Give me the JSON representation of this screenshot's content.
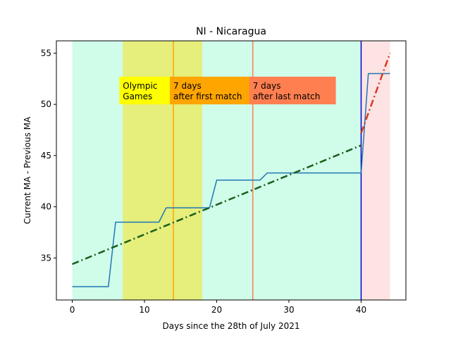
{
  "chart_data": {
    "type": "line",
    "title": "NI - Nicaragua",
    "xlabel": "Days since the 28th of July 2021",
    "ylabel": "Current MA - Previous MA",
    "xlim": [
      -2.2,
      46.2
    ],
    "ylim": [
      30.9,
      56.2
    ],
    "xticks": [
      0,
      10,
      20,
      30,
      40
    ],
    "yticks": [
      35,
      40,
      45,
      50,
      55
    ],
    "grid": false,
    "shaded_regions": [
      {
        "x0": 0,
        "x1": 40,
        "color": "#d0fcea"
      },
      {
        "x0": 7,
        "x1": 18,
        "color": "#e6ee7c"
      },
      {
        "x0": 40,
        "x1": 44,
        "color": "#fde3e3"
      }
    ],
    "vertical_lines": [
      {
        "x": 14,
        "color": "#ffa500"
      },
      {
        "x": 25,
        "color": "#ff7f50"
      },
      {
        "x": 40,
        "color": "#0000cc"
      }
    ],
    "annotations": [
      {
        "lines": [
          "Olympic",
          "Games"
        ],
        "x": 7,
        "y": 51.5,
        "bg": "#ffff00"
      },
      {
        "lines": [
          "7 days",
          "after first match"
        ],
        "x": 14,
        "y": 51.5,
        "bg": "#ffa500"
      },
      {
        "lines": [
          "7 days",
          "after last match"
        ],
        "x": 25,
        "y": 51.5,
        "bg": "#ff7f50"
      }
    ],
    "series": [
      {
        "style": "solid",
        "color": "#1f77b4",
        "x": [
          0,
          1,
          2,
          3,
          4,
          5,
          6,
          7,
          8,
          9,
          10,
          11,
          12,
          13,
          14,
          15,
          16,
          17,
          18,
          19,
          20,
          21,
          22,
          23,
          24,
          25,
          26,
          27,
          28,
          29,
          30,
          31,
          32,
          33,
          34,
          35,
          36,
          37,
          38,
          39,
          40,
          41,
          42,
          43,
          44
        ],
        "y": [
          32.2,
          32.2,
          32.2,
          32.2,
          32.2,
          32.2,
          38.5,
          38.5,
          38.5,
          38.5,
          38.5,
          38.5,
          38.5,
          39.9,
          39.9,
          39.9,
          39.9,
          39.9,
          39.9,
          39.9,
          42.6,
          42.6,
          42.6,
          42.6,
          42.6,
          42.6,
          42.6,
          43.3,
          43.3,
          43.3,
          43.3,
          43.3,
          43.3,
          43.3,
          43.3,
          43.3,
          43.3,
          43.3,
          43.3,
          43.3,
          43.3,
          53.0,
          53.0,
          53.0,
          53.0
        ]
      },
      {
        "style": "dashdot",
        "color": "#1a5e1a",
        "x": [
          0,
          40
        ],
        "y": [
          34.4,
          46.0
        ]
      },
      {
        "style": "dashdot",
        "color": "#d93a1e",
        "x": [
          40,
          44
        ],
        "y": [
          47.2,
          55.0
        ]
      }
    ]
  }
}
